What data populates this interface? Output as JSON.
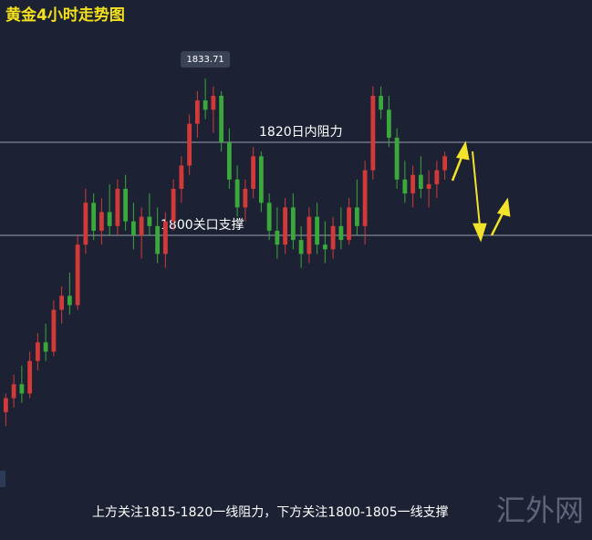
{
  "chart_data": {
    "type": "candlestick",
    "title": "黄金4小时走势图",
    "open": [
      1762,
      1765,
      1768,
      1766,
      1773,
      1777,
      1775,
      1784,
      1787,
      1785,
      1798,
      1807,
      1801,
      1805,
      1802,
      1810,
      1803,
      1800,
      1804,
      1802,
      1796,
      1803,
      1810,
      1815,
      1824,
      1829,
      1827,
      1830,
      1820,
      1812,
      1806,
      1810,
      1817,
      1807,
      1801,
      1798,
      1806,
      1799,
      1796,
      1804,
      1798,
      1797,
      1802,
      1799,
      1806,
      1802,
      1814,
      1830,
      1827,
      1821,
      1812,
      1809,
      1813,
      1810,
      1811,
      1814
    ],
    "high": [
      1766,
      1770,
      1772,
      1775,
      1779,
      1781,
      1786,
      1789,
      1792,
      1800,
      1810,
      1809,
      1808,
      1811,
      1812,
      1813,
      1807,
      1806,
      1809,
      1806,
      1805,
      1812,
      1817,
      1826,
      1831,
      1833.71,
      1832,
      1831,
      1823,
      1815,
      1812,
      1819,
      1818,
      1809,
      1806,
      1808,
      1809,
      1802,
      1806,
      1807,
      1803,
      1804,
      1806,
      1808,
      1812,
      1816,
      1832,
      1832,
      1830,
      1823,
      1816,
      1815,
      1817,
      1814,
      1816,
      1818
    ],
    "low": [
      1759,
      1763,
      1764,
      1765,
      1771,
      1773,
      1774,
      1781,
      1783,
      1784,
      1796,
      1799,
      1798,
      1800,
      1800,
      1801,
      1797,
      1795,
      1800,
      1794,
      1793,
      1801,
      1807,
      1813,
      1821,
      1825,
      1822,
      1818,
      1810,
      1804,
      1803,
      1808,
      1805,
      1799,
      1795,
      1796,
      1797,
      1793,
      1794,
      1796,
      1794,
      1795,
      1797,
      1798,
      1800,
      1798,
      1812,
      1825,
      1819,
      1810,
      1807,
      1806,
      1808,
      1806,
      1808,
      1812
    ],
    "close": [
      1765,
      1768,
      1766,
      1773,
      1777,
      1775,
      1784,
      1787,
      1785,
      1798,
      1807,
      1801,
      1805,
      1802,
      1810,
      1803,
      1800,
      1804,
      1802,
      1796,
      1803,
      1810,
      1815,
      1824,
      1829,
      1827,
      1830,
      1820,
      1812,
      1806,
      1810,
      1817,
      1807,
      1801,
      1798,
      1806,
      1799,
      1796,
      1804,
      1798,
      1797,
      1802,
      1799,
      1806,
      1802,
      1814,
      1830,
      1827,
      1821,
      1812,
      1809,
      1813,
      1810,
      1811,
      1814,
      1817
    ],
    "up_color": "#d23a3a",
    "down_color": "#3aa83a",
    "levels": [
      {
        "value": 1820,
        "label": "1820日内阻力"
      },
      {
        "value": 1800,
        "label": "1800关口支撑"
      }
    ],
    "note": "上方关注1815-1820一线阻力，下方关注1800-1805一线支撑",
    "watermark": "汇外网"
  }
}
